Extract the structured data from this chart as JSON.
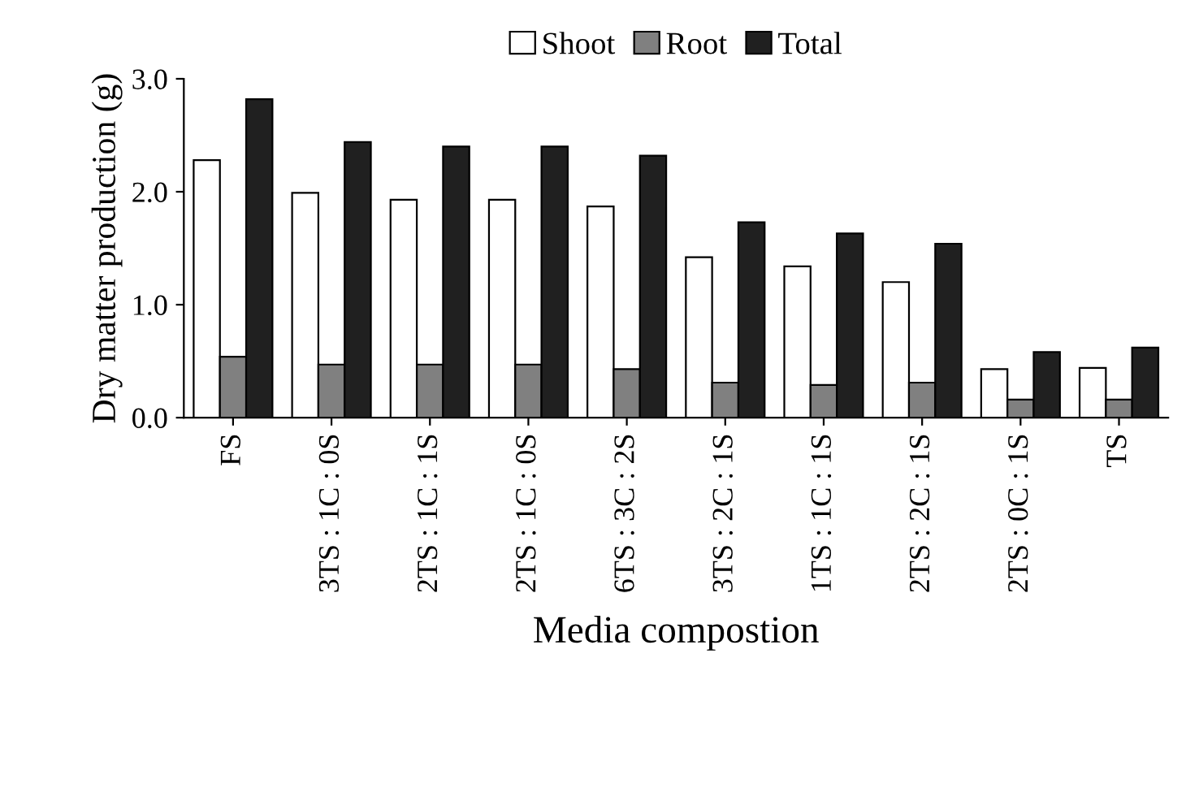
{
  "chart_data": {
    "type": "bar",
    "xlabel": "Media compostion",
    "ylabel": "Dry matter production (g)",
    "categories": [
      "FS",
      "3TS : 1C : 0S",
      "2TS : 1C : 1S",
      "2TS : 1C : 0S",
      "6TS : 3C : 2S",
      "3TS : 2C : 1S",
      "1TS : 1C : 1S",
      "2TS : 2C : 1S",
      "2TS : 0C : 1S",
      "TS"
    ],
    "series": [
      {
        "name": "Shoot",
        "color": "#ffffff",
        "values": [
          2.28,
          1.99,
          1.93,
          1.93,
          1.87,
          1.42,
          1.34,
          1.2,
          0.43,
          0.44
        ]
      },
      {
        "name": "Root",
        "color": "#808080",
        "values": [
          0.54,
          0.47,
          0.47,
          0.47,
          0.43,
          0.31,
          0.29,
          0.31,
          0.16,
          0.16
        ]
      },
      {
        "name": "Total",
        "color": "#202020",
        "values": [
          2.82,
          2.44,
          2.4,
          2.4,
          2.32,
          1.73,
          1.63,
          1.54,
          0.58,
          0.62
        ]
      }
    ],
    "ylim": [
      0,
      3
    ],
    "yticks": [
      {
        "value": 0,
        "label": "0.0"
      },
      {
        "value": 1,
        "label": "1.0"
      },
      {
        "value": 2,
        "label": "2.0"
      },
      {
        "value": 3,
        "label": "3.0"
      }
    ],
    "legend": "top",
    "grid": false
  }
}
